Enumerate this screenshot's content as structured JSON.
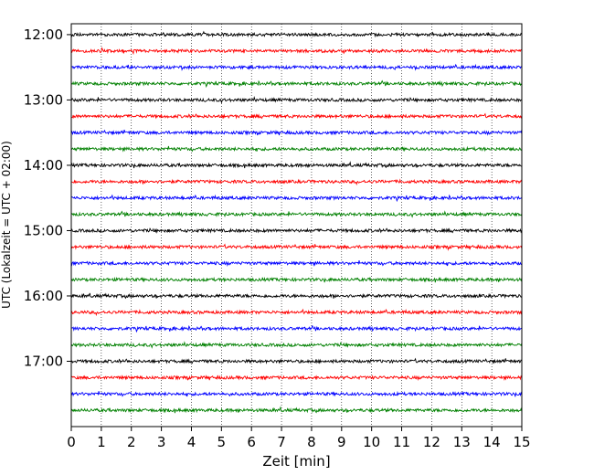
{
  "chart_data": {
    "type": "line",
    "title": "",
    "xlabel": "Zeit  [min]",
    "ylabel": "UTC (Lokalzeit = UTC + 02:00)",
    "xlim": [
      0,
      15
    ],
    "x_ticks": [
      0,
      1,
      2,
      3,
      4,
      5,
      6,
      7,
      8,
      9,
      10,
      11,
      12,
      13,
      14,
      15
    ],
    "x_tick_labels": [
      "0",
      "1",
      "2",
      "3",
      "4",
      "5",
      "6",
      "7",
      "8",
      "9",
      "10",
      "11",
      "12",
      "13",
      "14",
      "15"
    ],
    "y_ticks": [
      "12:00",
      "13:00",
      "14:00",
      "15:00",
      "16:00",
      "17:00"
    ],
    "grid": "vertical dotted",
    "trace_start_times": [
      "12:00",
      "12:15",
      "12:30",
      "12:45",
      "13:00",
      "13:15",
      "13:30",
      "13:45",
      "14:00",
      "14:15",
      "14:30",
      "14:45",
      "15:00",
      "15:15",
      "15:30",
      "15:45",
      "16:00",
      "16:15",
      "16:30",
      "16:45",
      "17:00",
      "17:15",
      "17:30",
      "17:45"
    ],
    "trace_colors": [
      "#000000",
      "#ff0000",
      "#0000ff",
      "#008000"
    ],
    "ylim": [
      "18:00",
      "11:50"
    ]
  }
}
